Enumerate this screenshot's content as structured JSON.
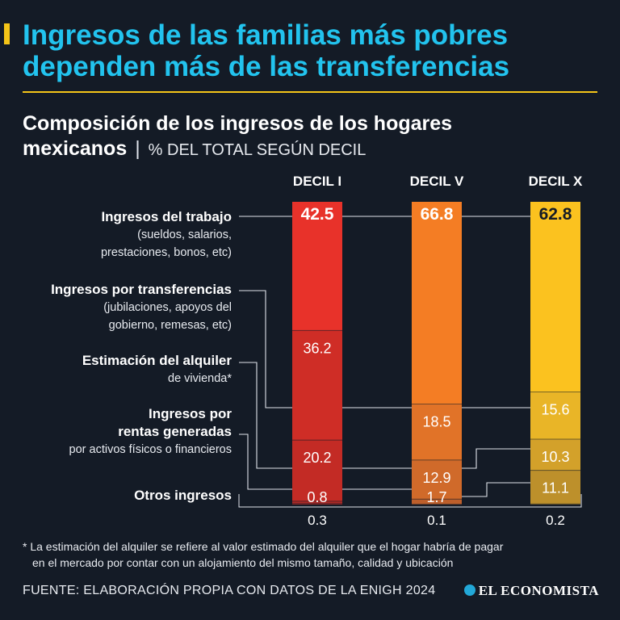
{
  "headline": {
    "line1": "Ingresos de las familias más pobres",
    "line2": "dependen más de las transferencias"
  },
  "subtitle": {
    "main1": "Composición de los ingresos de los hogares",
    "main2": "mexicanos",
    "separator": "|",
    "unit": "% DEL TOTAL SEGÚN DECIL"
  },
  "row_labels": [
    {
      "main": "Ingresos del trabajo",
      "sub1": "(sueldos, salarios,",
      "sub2": "prestaciones, bonos, etc)"
    },
    {
      "main": "Ingresos por transferencias",
      "sub1": "(jubilaciones, apoyos del",
      "sub2": "gobierno, remesas, etc)"
    },
    {
      "main": "Estimación del alquiler",
      "sub1": "de vivienda*"
    },
    {
      "main1": "Ingresos por",
      "main2": "rentas generadas",
      "sub1": "por activos físicos o financieros"
    },
    {
      "main": "Otros ingresos"
    }
  ],
  "chart_data": {
    "type": "bar",
    "subtype": "stacked-100",
    "title": "Composición de los ingresos de los hogares mexicanos",
    "ylabel": "% del total según decil",
    "categories": [
      "DECIL I",
      "DECIL V",
      "DECIL X"
    ],
    "series": [
      {
        "name": "Ingresos del trabajo",
        "values": [
          42.5,
          66.8,
          62.8
        ]
      },
      {
        "name": "Ingresos por transferencias",
        "values": [
          36.2,
          18.5,
          15.6
        ]
      },
      {
        "name": "Estimación del alquiler de vivienda",
        "values": [
          20.2,
          12.9,
          10.3
        ]
      },
      {
        "name": "Ingresos por rentas generadas",
        "values": [
          0.8,
          1.7,
          11.1
        ]
      },
      {
        "name": "Otros ingresos",
        "values": [
          0.3,
          0.1,
          0.2
        ]
      }
    ],
    "labels": [
      [
        "42.5",
        "66.8",
        "62.8"
      ],
      [
        "36.2",
        "18.5",
        "15.6"
      ],
      [
        "20.2",
        "12.9",
        "10.3"
      ],
      [
        "0.8",
        "1.7",
        "11.1"
      ],
      [
        "0.3",
        "0.1",
        "0.2"
      ]
    ],
    "colors": [
      [
        "#e8322a",
        "#f47d24",
        "#fbc21f"
      ],
      [
        "#cf2d26",
        "#e17328",
        "#e9b527"
      ],
      [
        "#c32b25",
        "#d06a2a",
        "#d3a12a"
      ],
      [
        "#ad2926",
        "#be5f2b",
        "#bd902b"
      ],
      [
        "#9e2825",
        "#a8552a",
        "#a37f2a"
      ]
    ],
    "label_colors": [
      "#ffffff",
      "#ffffff",
      "#141b26"
    ],
    "ylim": [
      0,
      100
    ]
  },
  "footnote": {
    "line1": "* La estimación del alquiler se refiere al valor estimado del alquiler que el hogar habría de pagar",
    "line2": "en el mercado por contar con un alojamiento del mismo tamaño, calidad y ubicación"
  },
  "source": "FUENTE: ELABORACIÓN PROPIA CON DATOS DE LA ENIGH 2024",
  "brand": "EL ECONOMISTA",
  "brand_icon": "el-economista-logo-icon",
  "accent_color": "#22c3ee",
  "highlight_color": "#f5c518"
}
